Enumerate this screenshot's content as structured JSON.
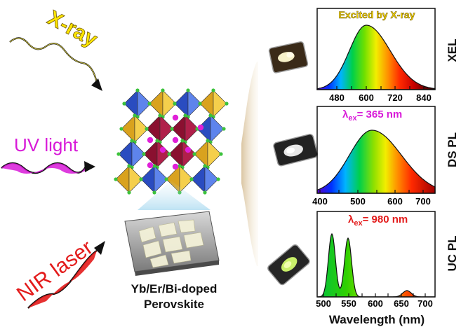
{
  "sources": {
    "xray": "X-ray",
    "uv": "UV light",
    "nir": "NIR laser"
  },
  "material": {
    "line1": "Yb/Er/Bi-doped",
    "line2": "Perovskite"
  },
  "panels": [
    {
      "mode": "XEL",
      "annotation": "Excited by X-ray",
      "ticks": [
        "480",
        "600",
        "720",
        "840"
      ]
    },
    {
      "mode": "DS PL",
      "annotation_symbol": "λ",
      "annotation_sub": "ex",
      "annotation_rest": "= 365 nm",
      "ticks": [
        "400",
        "500",
        "600",
        "700"
      ]
    },
    {
      "mode": "UC PL",
      "annotation_symbol": "λ",
      "annotation_sub": "ex",
      "annotation_rest": "= 980 nm",
      "ticks": [
        "500",
        "550",
        "600",
        "650",
        "700"
      ]
    }
  ],
  "xlabel": "Wavelength (nm)",
  "colors": {
    "xray_text": "#ffe600",
    "uv_text": "#d81ad8",
    "nir_text": "#e31b1b",
    "xel_annotation": "#f5d500",
    "ds_annotation": "#d81ad8",
    "uc_annotation": "#e31b1b"
  }
}
